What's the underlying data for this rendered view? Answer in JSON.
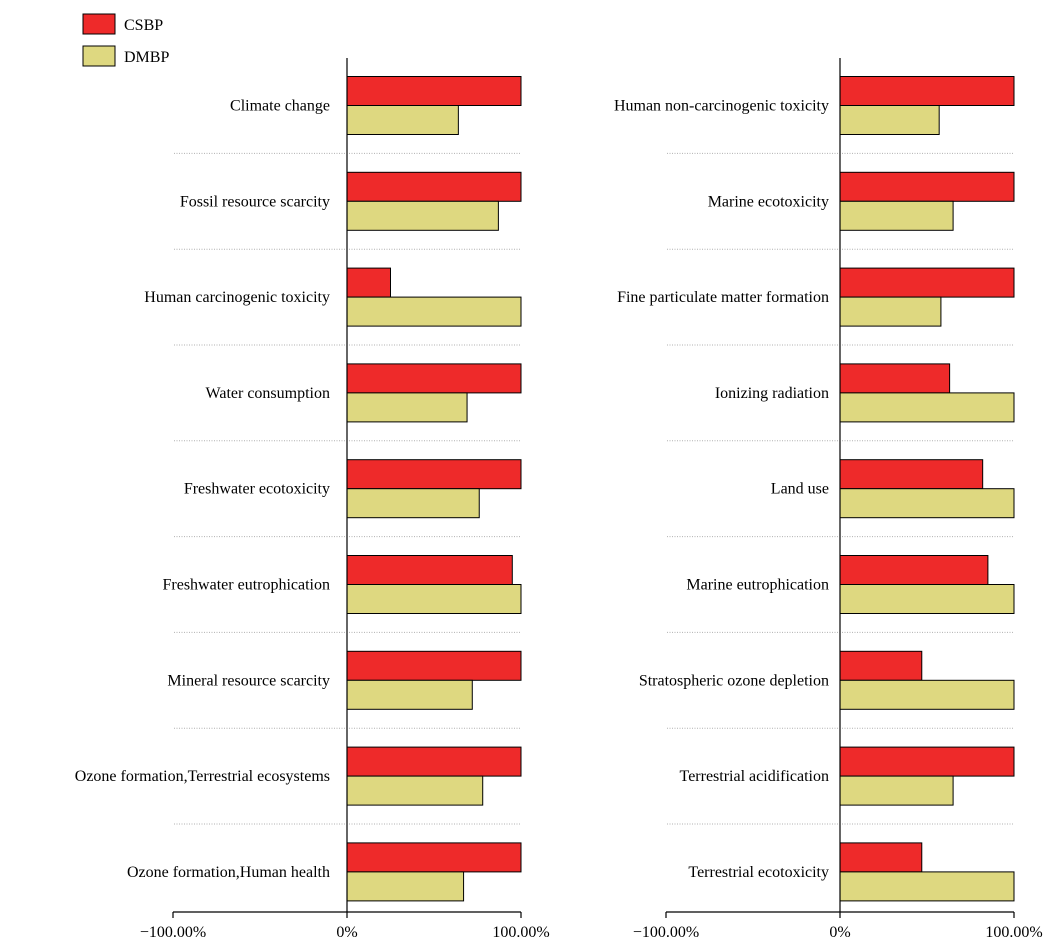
{
  "chart_data": [
    {
      "type": "bar",
      "orientation": "horizontal",
      "categories": [
        "Climate change",
        "Fossil resource scarcity",
        "Human carcinogenic toxicity",
        "Water consumption",
        "Freshwater ecotoxicity",
        "Freshwater eutrophication",
        "Mineral resource scarcity",
        "Ozone formation,Terrestrial ecosystems",
        "Ozone formation,Human health"
      ],
      "series": [
        {
          "name": "CSBP",
          "color": "#ee2a2a",
          "values": [
            100,
            100,
            25,
            100,
            100,
            95,
            100,
            100,
            100
          ]
        },
        {
          "name": "DMBP",
          "color": "#ded880",
          "values": [
            64,
            87,
            100,
            69,
            76,
            100,
            72,
            78,
            67
          ]
        }
      ],
      "xlim": [
        -100,
        100
      ],
      "xticks": [
        "−100.00%",
        "0%",
        "100.00%"
      ],
      "grid": false,
      "separators": true
    },
    {
      "type": "bar",
      "orientation": "horizontal",
      "categories": [
        "Human non-carcinogenic toxicity",
        "Marine ecotoxicity",
        "Fine particulate matter formation",
        "Ionizing radiation",
        "Land use",
        "Marine eutrophication",
        "Stratospheric ozone depletion",
        "Terrestrial acidification",
        "Terrestrial ecotoxicity"
      ],
      "series": [
        {
          "name": "CSBP",
          "color": "#ee2a2a",
          "values": [
            100,
            100,
            100,
            63,
            82,
            85,
            47,
            100,
            47
          ]
        },
        {
          "name": "DMBP",
          "color": "#ded880",
          "values": [
            57,
            65,
            58,
            100,
            100,
            100,
            100,
            65,
            100
          ]
        }
      ],
      "xlim": [
        -100,
        100
      ],
      "xticks": [
        "−100.00%",
        "0%",
        "100.00%"
      ],
      "grid": false,
      "separators": true
    }
  ],
  "legend": {
    "placement": "top-left",
    "items": [
      {
        "label": "CSBP",
        "color": "#ee2a2a"
      },
      {
        "label": "DMBP",
        "color": "#ded880"
      }
    ]
  }
}
